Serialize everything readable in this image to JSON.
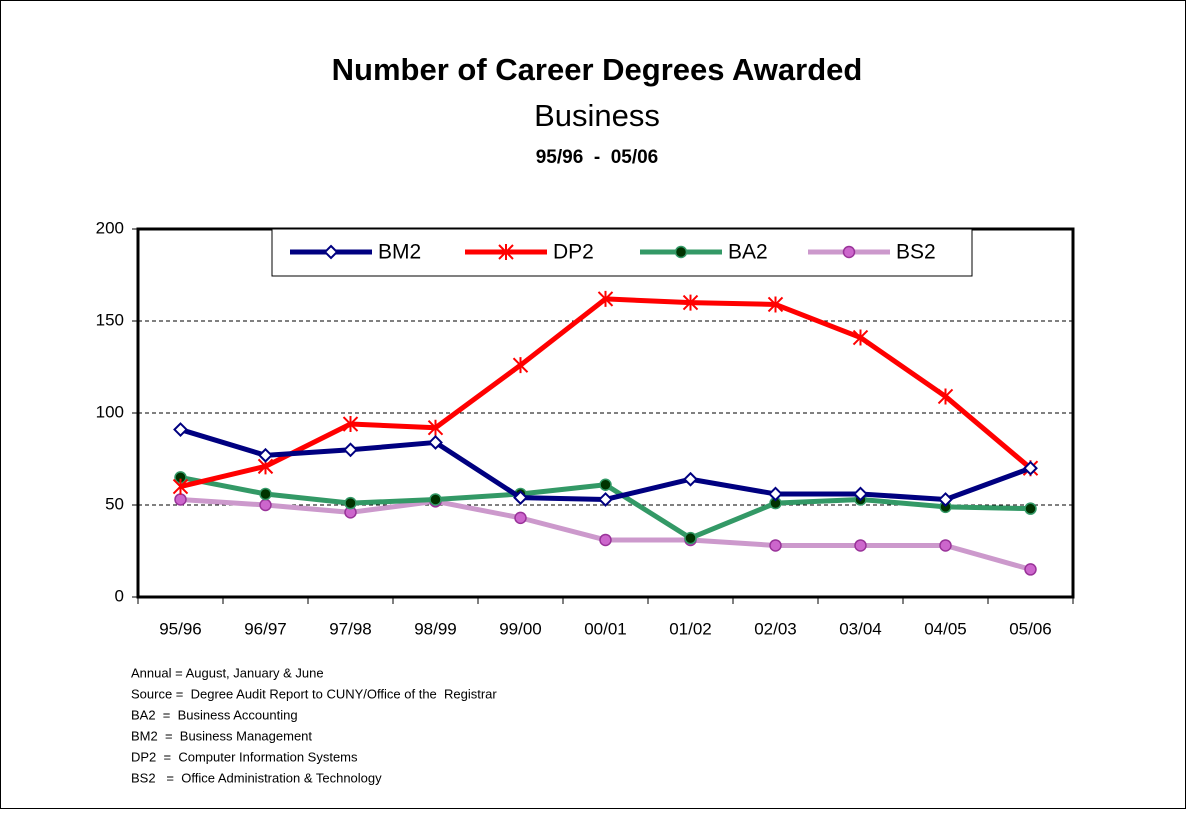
{
  "chart_data": {
    "type": "line",
    "title": "Number of Career Degrees Awarded",
    "subtitle": "Business",
    "period": "95/96  -  05/06",
    "categories": [
      "95/96",
      "96/97",
      "97/98",
      "98/99",
      "99/00",
      "00/01",
      "01/02",
      "02/03",
      "03/04",
      "04/05",
      "05/06"
    ],
    "series": [
      {
        "name": "BM2",
        "color": "#000080",
        "marker": "diamond",
        "values": [
          91,
          77,
          80,
          84,
          54,
          53,
          64,
          56,
          56,
          53,
          70
        ]
      },
      {
        "name": "DP2",
        "color": "#ff0000",
        "marker": "star",
        "values": [
          60,
          71,
          94,
          92,
          126,
          162,
          160,
          159,
          141,
          109,
          70
        ]
      },
      {
        "name": "BA2",
        "color": "#339966",
        "marker": "circle",
        "values": [
          65,
          56,
          51,
          53,
          56,
          61,
          32,
          51,
          53,
          49,
          48
        ]
      },
      {
        "name": "BS2",
        "color": "#cc99cc",
        "marker": "circle",
        "values": [
          53,
          50,
          46,
          52,
          43,
          31,
          31,
          28,
          28,
          28,
          15
        ]
      }
    ],
    "ylim": [
      0,
      200
    ],
    "yticks": [
      0,
      50,
      100,
      150,
      200
    ],
    "grid": true,
    "notes": [
      "Annual = August, January & June",
      "Source =  Degree Audit Report to CUNY/Office of the  Registrar",
      "BA2  =  Business Accounting",
      "BM2  =  Business Management",
      "DP2  =  Computer Information Systems",
      "BS2   =  Office Administration & Technology"
    ]
  }
}
